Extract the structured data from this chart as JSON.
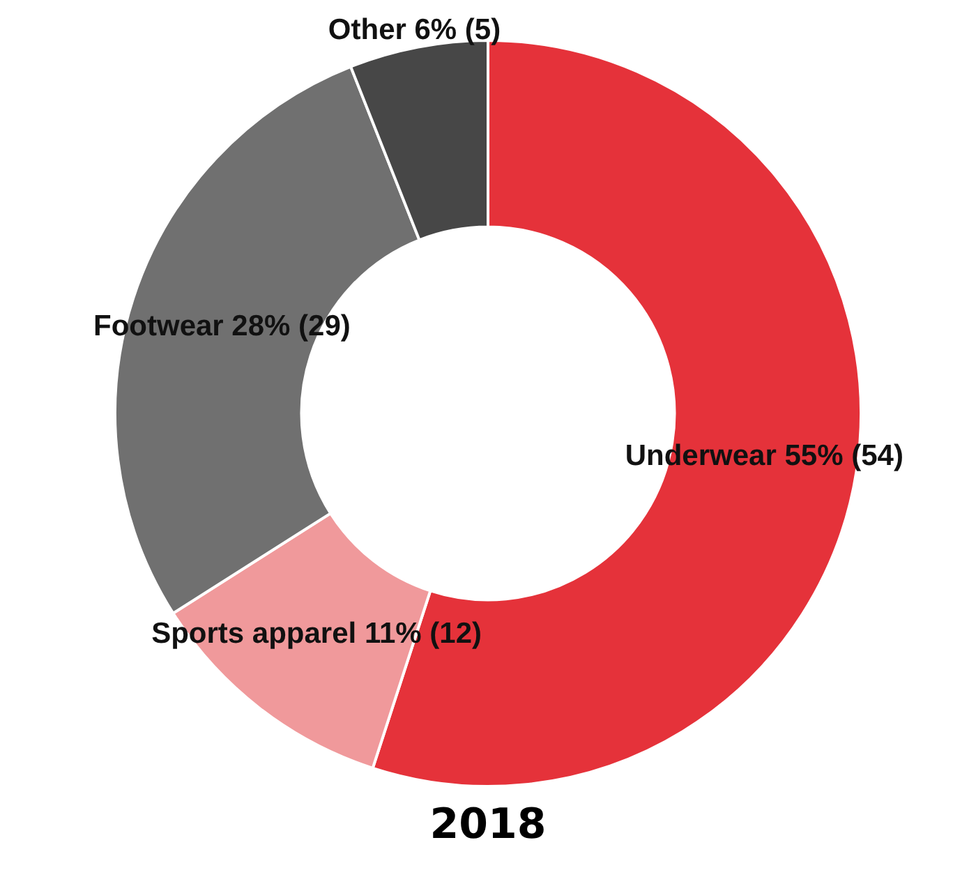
{
  "chart_data": {
    "type": "donut",
    "title": "2018",
    "categories": [
      "Underwear",
      "Sports apparel",
      "Footwear",
      "Other"
    ],
    "values": [
      55,
      11,
      28,
      6
    ],
    "value_labels": [
      "55% (54)",
      "11% (12)",
      "28% (29)",
      "6% (5)"
    ],
    "colors": [
      "#e5323a",
      "#f0999b",
      "#707070",
      "#474747"
    ],
    "legend": false
  }
}
